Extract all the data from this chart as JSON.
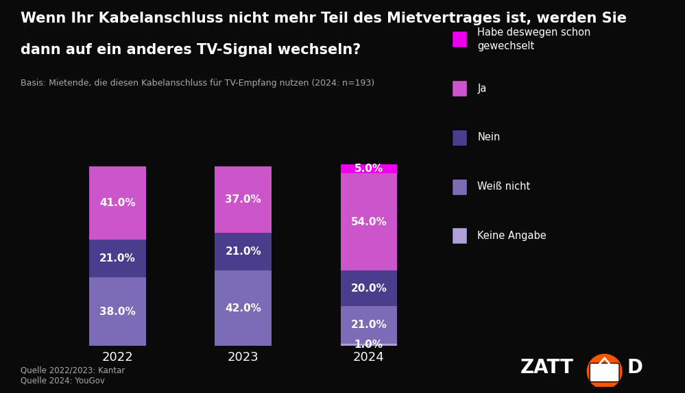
{
  "title_line1": "Wenn Ihr Kabelanschluss nicht mehr Teil des Mietvertrages ist, werden Sie",
  "title_line2": "dann auf ein anderes TV-Signal wechseln?",
  "subtitle": "Basis: Mietende, die diesen Kabelanschluss für TV-Empfang nutzen (2024: n=193)",
  "source": "Quelle 2022/2023: Kantar\nQuelle 2024: YouGov",
  "categories": [
    "2022",
    "2023",
    "2024"
  ],
  "segments": [
    {
      "label": "Keine Angabe",
      "color": "#b0a0d8",
      "values": [
        0,
        0,
        1
      ]
    },
    {
      "label": "Weiß nicht",
      "color": "#7b6db5",
      "values": [
        38,
        42,
        21
      ]
    },
    {
      "label": "Nein",
      "color": "#4a3e8c",
      "values": [
        21,
        21,
        20
      ]
    },
    {
      "label": "Ja",
      "color": "#cc55cc",
      "values": [
        41,
        37,
        54
      ]
    },
    {
      "label": "Habe deswegen schon gewechselt",
      "color": "#ee00ee",
      "values": [
        0,
        0,
        5
      ]
    }
  ],
  "legend_items": [
    {
      "label": "Habe deswegen schon\ngewechselt",
      "color": "#ee00ee"
    },
    {
      "label": "Ja",
      "color": "#cc55cc"
    },
    {
      "label": "Nein",
      "color": "#4a3e8c"
    },
    {
      "label": "Weiß nicht",
      "color": "#7b6db5"
    },
    {
      "label": "Keine Angabe",
      "color": "#b0a0d8"
    }
  ],
  "background_color": "#0a0a0a",
  "text_color": "#ffffff",
  "bar_width": 0.45,
  "figsize": [
    9.99,
    5.74
  ],
  "dpi": 100
}
